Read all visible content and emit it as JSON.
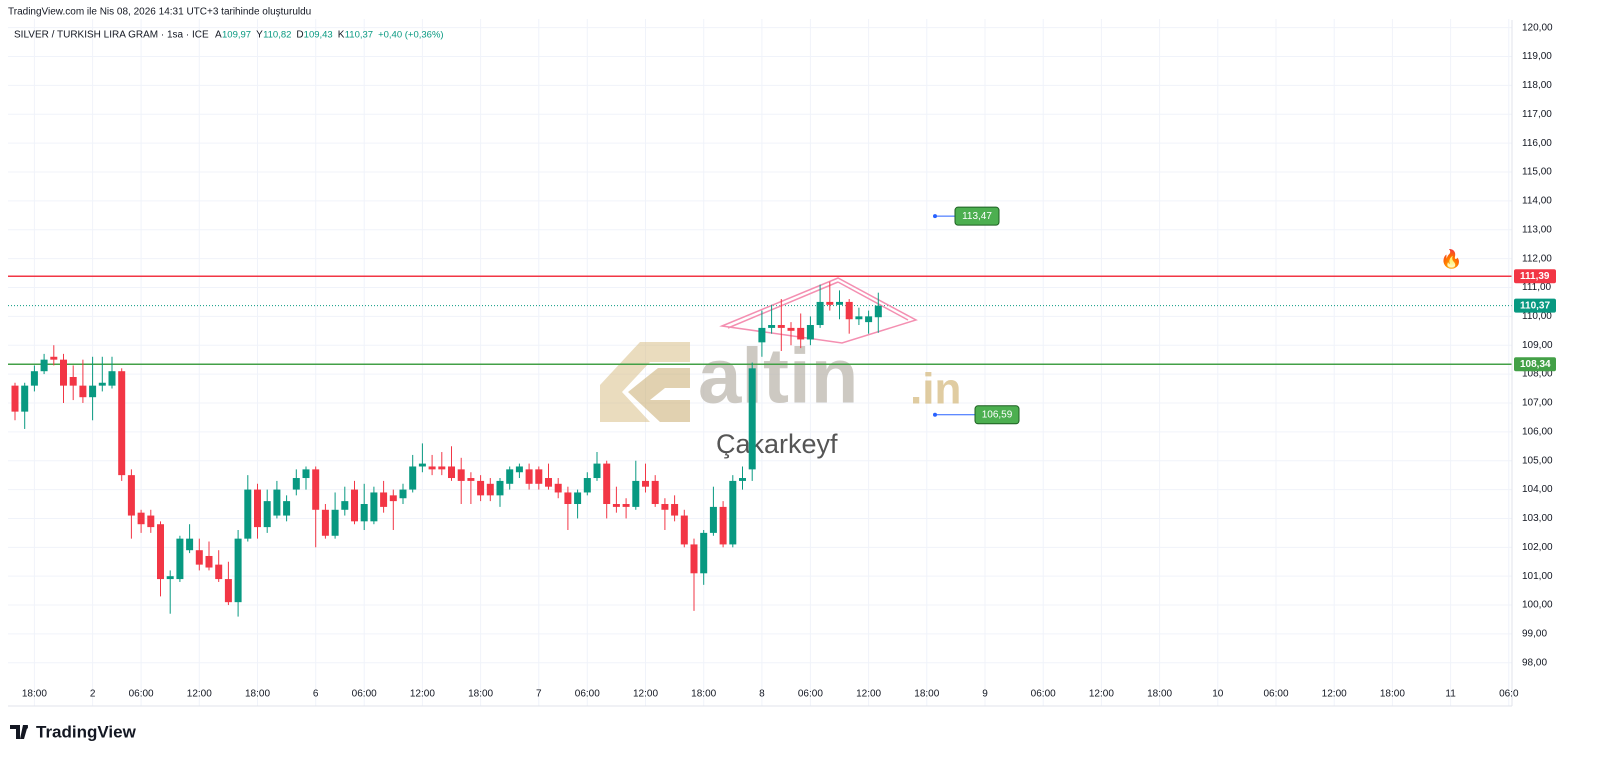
{
  "chart_data": {
    "type": "candlestick",
    "created": "TradingView.com ile Nis 08, 2026 14:31 UTC+3 tarihinde oluşturuldu",
    "symbol": "SILVER / TURKISH LIRA GRAM · 1sa · ICE",
    "ohlc_legend": [
      {
        "key": "A",
        "text": "109,97"
      },
      {
        "key": "Y",
        "text": "110,82"
      },
      {
        "key": "D",
        "text": "109,43"
      },
      {
        "key": "K",
        "text": "110,37"
      }
    ],
    "change": "+0,40 (+0,36%)",
    "watermark": {
      "main": "altin",
      "suffix": ".in",
      "author": "Çakarkeyf"
    },
    "brand": "TradingView",
    "up_color": "#089981",
    "down_color": "#f23645",
    "grid": true,
    "ylim": [
      97.3,
      120.3
    ],
    "yticks": [
      {
        "value": 98,
        "label": "98,00"
      },
      {
        "value": 99,
        "label": "99,00"
      },
      {
        "value": 100,
        "label": "100,00"
      },
      {
        "value": 101,
        "label": "101,00"
      },
      {
        "value": 102,
        "label": "102,00"
      },
      {
        "value": 103,
        "label": "103,00"
      },
      {
        "value": 104,
        "label": "104,00"
      },
      {
        "value": 105,
        "label": "105,00"
      },
      {
        "value": 106,
        "label": "106,00"
      },
      {
        "value": 107,
        "label": "107,00"
      },
      {
        "value": 108,
        "label": "108,00"
      },
      {
        "value": 109,
        "label": "109,00"
      },
      {
        "value": 110,
        "label": "110,00"
      },
      {
        "value": 111,
        "label": "111,00"
      },
      {
        "value": 112,
        "label": "112,00"
      },
      {
        "value": 113,
        "label": "113,00"
      },
      {
        "value": 114,
        "label": "114,00"
      },
      {
        "value": 115,
        "label": "115,00"
      },
      {
        "value": 116,
        "label": "116,00"
      },
      {
        "value": 117,
        "label": "117,00"
      },
      {
        "value": 118,
        "label": "118,00"
      },
      {
        "value": 119,
        "label": "119,00"
      },
      {
        "value": 120,
        "label": "120,00"
      }
    ],
    "categories": [
      null,
      null,
      "18:00",
      null,
      null,
      null,
      null,
      null,
      "2",
      null,
      null,
      null,
      null,
      "06:00",
      null,
      null,
      null,
      null,
      null,
      "12:00",
      null,
      null,
      null,
      null,
      null,
      "18:00",
      null,
      null,
      null,
      null,
      null,
      "6",
      null,
      null,
      null,
      null,
      "06:00",
      null,
      null,
      null,
      null,
      null,
      "12:00",
      null,
      null,
      null,
      null,
      null,
      "18:00",
      null,
      null,
      null,
      null,
      null,
      "7",
      null,
      null,
      null,
      null,
      "06:00",
      null,
      null,
      null,
      null,
      null,
      "12:00",
      null,
      null,
      null,
      null,
      null,
      "18:00",
      null,
      null,
      null,
      null,
      null,
      "8",
      null,
      null,
      null,
      null,
      "06:00",
      null,
      null,
      null,
      null,
      null,
      "12:00",
      null,
      null,
      null,
      null,
      null,
      "18:00",
      null,
      null,
      null,
      null,
      null,
      "9",
      null,
      null,
      null,
      null,
      null,
      "06:00",
      null,
      null,
      null,
      null,
      null,
      "12:00",
      null,
      null,
      null,
      null,
      null,
      "18:00",
      null,
      null,
      null,
      null,
      null,
      "10",
      null,
      null,
      null,
      null,
      null,
      "06:00",
      null,
      null,
      null,
      null,
      null,
      "12:00",
      null,
      null,
      null,
      null,
      null,
      "18:00",
      null,
      null,
      null,
      null,
      null,
      "11",
      null,
      null,
      null,
      null,
      null,
      "06:0"
    ],
    "ohlc": [
      [
        107.6,
        107.7,
        106.4,
        106.7
      ],
      [
        106.7,
        107.7,
        106.1,
        107.6
      ],
      [
        107.6,
        108.3,
        107.4,
        108.1
      ],
      [
        108.1,
        108.7,
        108.0,
        108.5
      ],
      [
        108.6,
        109.0,
        108.3,
        108.5
      ],
      [
        108.5,
        108.7,
        107.0,
        107.6
      ],
      [
        107.9,
        108.3,
        107.1,
        107.6
      ],
      [
        107.6,
        108.5,
        107.0,
        107.2
      ],
      [
        107.2,
        108.6,
        106.4,
        107.6
      ],
      [
        107.6,
        108.6,
        107.4,
        107.7
      ],
      [
        107.6,
        108.6,
        107.5,
        108.1
      ],
      [
        108.1,
        108.2,
        104.3,
        104.5
      ],
      [
        104.5,
        104.7,
        102.3,
        103.1
      ],
      [
        103.2,
        103.3,
        102.5,
        102.8
      ],
      [
        103.1,
        103.3,
        102.5,
        102.7
      ],
      [
        102.8,
        102.9,
        100.3,
        100.9
      ],
      [
        100.9,
        101.2,
        99.7,
        101.0
      ],
      [
        100.9,
        102.4,
        100.8,
        102.3
      ],
      [
        101.9,
        102.8,
        101.8,
        102.3
      ],
      [
        101.9,
        102.3,
        101.2,
        101.4
      ],
      [
        101.7,
        102.2,
        101.2,
        101.3
      ],
      [
        101.4,
        101.9,
        100.8,
        100.9
      ],
      [
        100.9,
        101.5,
        100.0,
        100.1
      ],
      [
        100.1,
        102.6,
        99.6,
        102.3
      ],
      [
        102.3,
        104.5,
        102.2,
        104.0
      ],
      [
        104.0,
        104.2,
        102.3,
        102.7
      ],
      [
        102.7,
        104.0,
        102.5,
        103.6
      ],
      [
        103.1,
        104.3,
        103.0,
        104.0
      ],
      [
        103.1,
        103.8,
        102.9,
        103.6
      ],
      [
        104.0,
        104.7,
        103.8,
        104.4
      ],
      [
        104.4,
        104.8,
        104.0,
        104.7
      ],
      [
        104.7,
        104.8,
        102.0,
        103.3
      ],
      [
        103.3,
        103.5,
        102.3,
        102.4
      ],
      [
        102.4,
        103.9,
        102.3,
        103.3
      ],
      [
        103.3,
        104.1,
        103.1,
        103.6
      ],
      [
        104.0,
        104.3,
        102.8,
        102.9
      ],
      [
        102.9,
        104.2,
        102.6,
        103.5
      ],
      [
        102.9,
        104.1,
        102.8,
        103.9
      ],
      [
        103.9,
        104.3,
        103.2,
        103.4
      ],
      [
        103.8,
        104.0,
        102.6,
        103.6
      ],
      [
        103.7,
        104.2,
        103.5,
        104.0
      ],
      [
        104.0,
        105.2,
        103.9,
        104.8
      ],
      [
        104.8,
        105.6,
        104.6,
        104.9
      ],
      [
        104.8,
        105.2,
        104.5,
        104.7
      ],
      [
        104.8,
        105.3,
        104.5,
        104.7
      ],
      [
        104.8,
        105.5,
        104.3,
        104.4
      ],
      [
        104.7,
        105.1,
        103.5,
        104.3
      ],
      [
        104.4,
        104.6,
        103.5,
        104.3
      ],
      [
        104.3,
        104.5,
        103.6,
        103.8
      ],
      [
        104.2,
        104.4,
        103.6,
        103.8
      ],
      [
        103.8,
        104.4,
        103.4,
        104.3
      ],
      [
        104.2,
        104.8,
        104.0,
        104.7
      ],
      [
        104.6,
        104.9,
        104.4,
        104.8
      ],
      [
        104.7,
        104.9,
        104.0,
        104.2
      ],
      [
        104.7,
        104.8,
        104.0,
        104.2
      ],
      [
        104.4,
        104.9,
        104.0,
        104.1
      ],
      [
        104.2,
        104.4,
        103.7,
        103.9
      ],
      [
        103.9,
        104.1,
        102.6,
        103.5
      ],
      [
        103.5,
        104.0,
        103.0,
        103.9
      ],
      [
        103.9,
        104.6,
        103.8,
        104.4
      ],
      [
        104.4,
        105.3,
        104.3,
        104.9
      ],
      [
        104.9,
        105.0,
        103.0,
        103.5
      ],
      [
        103.5,
        104.1,
        103.2,
        103.4
      ],
      [
        103.5,
        103.7,
        103.0,
        103.4
      ],
      [
        103.4,
        105.0,
        103.3,
        104.3
      ],
      [
        104.3,
        104.9,
        103.9,
        104.1
      ],
      [
        104.3,
        104.5,
        103.4,
        103.5
      ],
      [
        103.5,
        103.7,
        102.6,
        103.3
      ],
      [
        103.5,
        103.8,
        102.9,
        103.1
      ],
      [
        103.1,
        103.3,
        102.0,
        102.1
      ],
      [
        102.1,
        102.3,
        99.8,
        101.1
      ],
      [
        101.1,
        102.6,
        100.7,
        102.5
      ],
      [
        102.5,
        104.1,
        102.4,
        103.4
      ],
      [
        103.4,
        103.6,
        102.0,
        102.1
      ],
      [
        102.1,
        104.5,
        102.0,
        104.3
      ],
      [
        104.3,
        104.8,
        104.0,
        104.4
      ],
      [
        104.7,
        108.4,
        104.3,
        108.2
      ],
      [
        109.1,
        110.2,
        108.6,
        109.6
      ],
      [
        109.6,
        110.4,
        109.4,
        109.7
      ],
      [
        109.7,
        110.6,
        108.8,
        109.6
      ],
      [
        109.6,
        109.8,
        109.0,
        109.5
      ],
      [
        109.6,
        110.1,
        108.9,
        109.2
      ],
      [
        109.2,
        110.0,
        109.0,
        109.7
      ],
      [
        109.7,
        111.1,
        109.6,
        110.5
      ],
      [
        110.5,
        111.2,
        110.2,
        110.4
      ],
      [
        110.4,
        110.9,
        109.9,
        110.5
      ],
      [
        110.5,
        110.6,
        109.4,
        109.9
      ],
      [
        109.9,
        110.3,
        109.7,
        110.0
      ],
      [
        109.8,
        110.2,
        109.4,
        110.0
      ],
      [
        109.97,
        110.82,
        109.43,
        110.37
      ],
      null,
      null,
      null,
      null,
      null,
      null,
      null,
      null,
      null,
      null,
      null,
      null,
      null,
      null,
      null,
      null,
      null,
      null,
      null,
      null,
      null,
      null,
      null,
      null,
      null,
      null,
      null,
      null,
      null,
      null,
      null,
      null,
      null,
      null,
      null,
      null,
      null,
      null,
      null,
      null,
      null,
      null,
      null,
      null,
      null,
      null,
      null,
      null,
      null,
      null,
      null,
      null,
      null,
      null,
      null,
      null,
      null,
      null,
      null,
      null,
      null,
      null,
      null,
      null,
      null
    ],
    "hlines": [
      {
        "value": 111.39,
        "label": "111,39",
        "color": "#f23645",
        "style": "solid"
      },
      {
        "value": 108.34,
        "label": "108,34",
        "color": "#43a047",
        "style": "solid"
      },
      {
        "value": 110.37,
        "label": "110,37",
        "color": "#089981",
        "style": "dotted"
      }
    ],
    "callouts": [
      {
        "value": 113.47,
        "label": "113,47"
      },
      {
        "value": 106.59,
        "label": "106,59"
      }
    ]
  }
}
